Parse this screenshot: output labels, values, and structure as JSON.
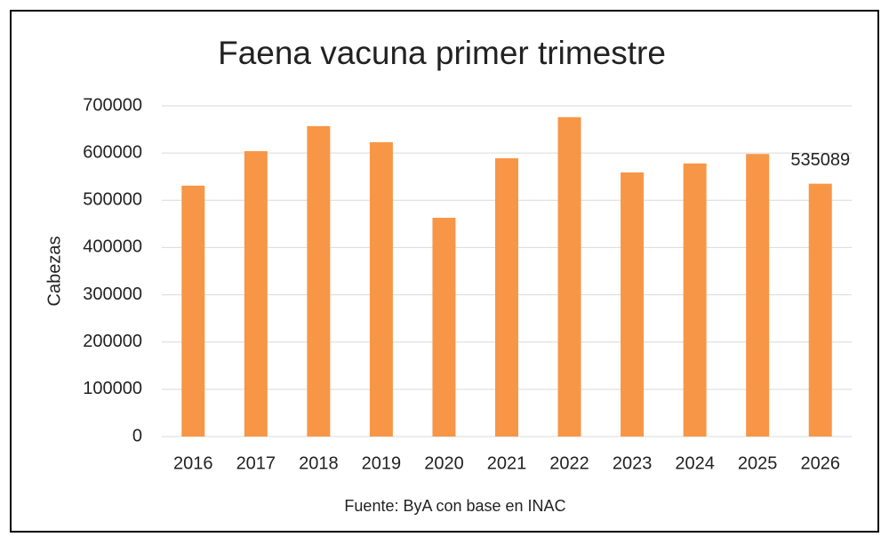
{
  "chart_data": {
    "type": "bar",
    "title": "Faena vacuna primer trimestre",
    "y_label": "Cabezas",
    "source": "Fuente: ByA con base en INAC",
    "categories": [
      "2016",
      "2017",
      "2018",
      "2019",
      "2020",
      "2021",
      "2022",
      "2023",
      "2024",
      "2025",
      "2026"
    ],
    "values": [
      531000,
      604000,
      657000,
      623000,
      463000,
      589000,
      676000,
      559000,
      578000,
      598000,
      535089
    ],
    "value_labels": [
      null,
      null,
      null,
      null,
      null,
      null,
      null,
      null,
      null,
      null,
      "535089"
    ],
    "color": "#f79646",
    "ylim": [
      0,
      700000
    ],
    "yticks": [
      0,
      100000,
      200000,
      300000,
      400000,
      500000,
      600000,
      700000
    ],
    "grid": true
  }
}
